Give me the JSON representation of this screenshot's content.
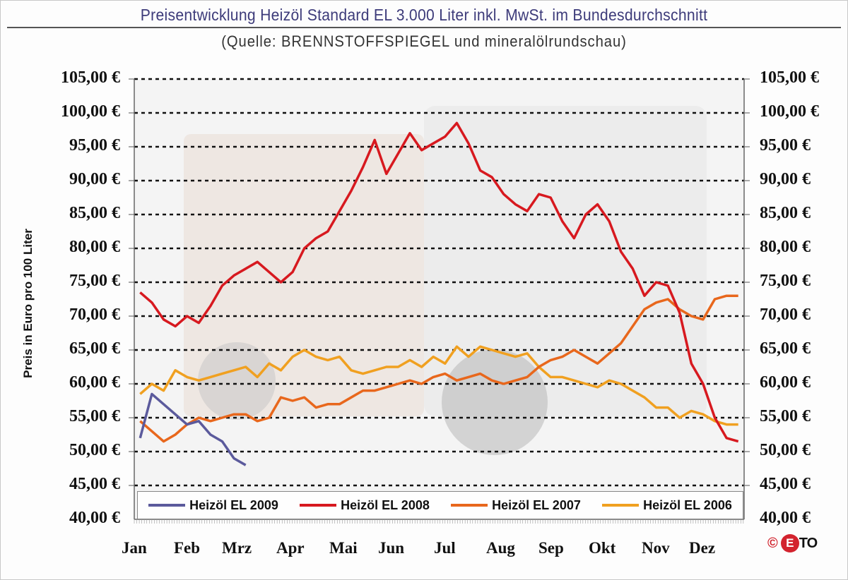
{
  "header": {
    "title": "Preisentwicklung Heizöl Standard EL 3.000 Liter inkl. MwSt. im Bundesdurchschnitt",
    "subtitle": "(Quelle: BRENNSTOFFSPIEGEL und mineralölrundschau)"
  },
  "axes": {
    "ylabel": "Preis in Euro pro 100 Liter",
    "yticks": [
      "105,00 €",
      "100,00 €",
      "95,00 €",
      "90,00 €",
      "85,00 €",
      "80,00 €",
      "75,00 €",
      "70,00 €",
      "65,00 €",
      "60,00 €",
      "55,00 €",
      "50,00 €",
      "45,00 €",
      "40,00 €"
    ],
    "months": [
      "Jan",
      "Feb",
      "Mrz",
      "Apr",
      "Mai",
      "Jun",
      "Jul",
      "Aug",
      "Sep",
      "Okt",
      "Nov",
      "Dez"
    ]
  },
  "legend": [
    {
      "label": "Heizöl EL 2009",
      "color": "#5b5a9c"
    },
    {
      "label": "Heizöl EL 2008",
      "color": "#d7191f"
    },
    {
      "label": "Heizöl EL 2007",
      "color": "#e8671c"
    },
    {
      "label": "Heizöl EL 2006",
      "color": "#f0a020"
    }
  ],
  "logo": {
    "copyright": "©",
    "text": "CETO"
  },
  "chart_data": {
    "type": "line",
    "title": "Preisentwicklung Heizöl Standard EL 3.000 Liter inkl. MwSt. im Bundesdurchschnitt",
    "subtitle": "(Quelle: BRENNSTOFFSPIEGEL und mineralölrundschau)",
    "xlabel": "",
    "ylabel": "Preis in Euro pro 100 Liter",
    "ylim": [
      40,
      105
    ],
    "yticks": [
      40,
      45,
      50,
      55,
      60,
      65,
      70,
      75,
      80,
      85,
      90,
      95,
      100,
      105
    ],
    "grid": true,
    "legend_position": "bottom-inside",
    "x_unit": "week of year (1-52)",
    "categories": [
      "Jan",
      "Feb",
      "Mrz",
      "Apr",
      "Mai",
      "Jun",
      "Jul",
      "Aug",
      "Sep",
      "Okt",
      "Nov",
      "Dez"
    ],
    "series": [
      {
        "name": "Heizöl EL 2009",
        "color": "#5b5a9c",
        "x": [
          1,
          2,
          3,
          4,
          5,
          6,
          7,
          8,
          9,
          10
        ],
        "values": [
          52,
          58.5,
          57,
          55.5,
          54,
          54.5,
          52.5,
          51.5,
          49,
          48
        ]
      },
      {
        "name": "Heizöl EL 2008",
        "color": "#d7191f",
        "x": [
          1,
          2,
          3,
          4,
          5,
          6,
          7,
          8,
          9,
          10,
          11,
          12,
          13,
          14,
          15,
          16,
          17,
          18,
          19,
          20,
          21,
          22,
          23,
          24,
          25,
          26,
          27,
          28,
          29,
          30,
          31,
          32,
          33,
          34,
          35,
          36,
          37,
          38,
          39,
          40,
          41,
          42,
          43,
          44,
          45,
          46,
          47,
          48,
          49,
          50,
          51,
          52
        ],
        "values": [
          73.5,
          72,
          69.5,
          68.5,
          70,
          69,
          71.5,
          74.5,
          76,
          77,
          78,
          76.5,
          75,
          76.5,
          80,
          81.5,
          82.5,
          85.5,
          88.5,
          92,
          96,
          91,
          94,
          97,
          94.5,
          95.5,
          96.5,
          98.5,
          95.5,
          91.5,
          90.5,
          88,
          86.5,
          85.5,
          88,
          87.5,
          84,
          81.5,
          85,
          86.5,
          84,
          79.5,
          77,
          73,
          75,
          74.5,
          70.5,
          63,
          60,
          55,
          52,
          51.5
        ]
      },
      {
        "name": "Heizöl EL 2007",
        "color": "#e8671c",
        "x": [
          1,
          2,
          3,
          4,
          5,
          6,
          7,
          8,
          9,
          10,
          11,
          12,
          13,
          14,
          15,
          16,
          17,
          18,
          19,
          20,
          21,
          22,
          23,
          24,
          25,
          26,
          27,
          28,
          29,
          30,
          31,
          32,
          33,
          34,
          35,
          36,
          37,
          38,
          39,
          40,
          41,
          42,
          43,
          44,
          45,
          46,
          47,
          48,
          49,
          50,
          51,
          52
        ],
        "values": [
          54.5,
          53,
          51.5,
          52.5,
          54,
          55,
          54.5,
          55,
          55.5,
          55.5,
          54.5,
          55,
          58,
          57.5,
          58,
          56.5,
          57,
          57,
          58,
          59,
          59,
          59.5,
          60,
          60.5,
          60,
          61,
          61.5,
          60.5,
          61,
          61.5,
          60.5,
          60,
          60.5,
          61,
          62.5,
          63.5,
          64,
          65,
          64,
          63,
          64.5,
          66,
          68.5,
          71,
          72,
          72.5,
          71,
          70,
          69.5,
          72.5,
          73,
          73
        ]
      },
      {
        "name": "Heizöl EL 2006",
        "color": "#f0a020",
        "x": [
          1,
          2,
          3,
          4,
          5,
          6,
          7,
          8,
          9,
          10,
          11,
          12,
          13,
          14,
          15,
          16,
          17,
          18,
          19,
          20,
          21,
          22,
          23,
          24,
          25,
          26,
          27,
          28,
          29,
          30,
          31,
          32,
          33,
          34,
          35,
          36,
          37,
          38,
          39,
          40,
          41,
          42,
          43,
          44,
          45,
          46,
          47,
          48,
          49,
          50,
          51,
          52
        ],
        "values": [
          58.5,
          60,
          59,
          62,
          61,
          60.5,
          61,
          61.5,
          62,
          62.5,
          61,
          63,
          62,
          64,
          65,
          64,
          63.5,
          64,
          62,
          61.5,
          62,
          62.5,
          62.5,
          63.5,
          62.5,
          64,
          63,
          65.5,
          64,
          65.5,
          65,
          64.5,
          64,
          64.5,
          62.5,
          61,
          61,
          60.5,
          60,
          59.5,
          60.5,
          60,
          59,
          58,
          56.5,
          56.5,
          55,
          56,
          55.5,
          54.5,
          54,
          54
        ]
      }
    ]
  }
}
